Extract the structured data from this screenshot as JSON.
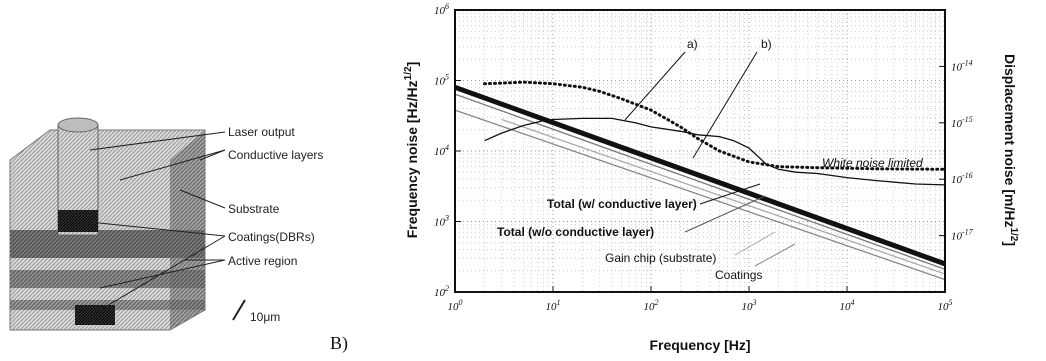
{
  "panel_label": "B)",
  "schematic": {
    "labels": [
      "Laser output",
      "Conductive layers",
      "Substrate",
      "Coatings(DBRs)",
      "Active region"
    ],
    "scale_bar": "10μm"
  },
  "chart_data": {
    "type": "line",
    "xlabel": "Frequency [Hz]",
    "ylabel": "Frequency noise [Hz/Hz^1/2]",
    "y2label": "Displacement noise [m/Hz^1/2]",
    "xscale": "log",
    "yscale": "log",
    "xlim": [
      1,
      100000
    ],
    "ylim": [
      100,
      1000000
    ],
    "y2lim": [
      1e-18,
      1e-13
    ],
    "xticks": [
      1,
      10,
      100,
      1000,
      10000,
      100000
    ],
    "yticks": [
      100,
      1000,
      10000,
      100000,
      1000000
    ],
    "y2ticks": [
      1e-17,
      1e-16,
      1e-15,
      1e-14
    ],
    "grid": true,
    "series": [
      {
        "name": "Total (w/ conductive layer)",
        "x": [
          1,
          100000
        ],
        "y": [
          80000,
          250
        ],
        "color": "#111111",
        "style": "thick"
      },
      {
        "name": "Total (w/o conductive layer)",
        "x": [
          1,
          100000
        ],
        "y": [
          64000,
          210
        ],
        "color": "#777777",
        "style": "solid"
      },
      {
        "name": "Gain chip (substrate)",
        "x": [
          3,
          100000
        ],
        "y": [
          28000,
          180
        ],
        "color": "#aaaaaa",
        "style": "solid"
      },
      {
        "name": "Coatings",
        "x": [
          1,
          100000
        ],
        "y": [
          38000,
          150
        ],
        "color": "#888888",
        "style": "solid"
      },
      {
        "name": "a)",
        "x": [
          2,
          3,
          5,
          8,
          10,
          20,
          40,
          70,
          100,
          200,
          300,
          500,
          700,
          1000,
          1500,
          2000,
          3000,
          5000,
          10000,
          20000,
          50000,
          100000
        ],
        "y": [
          14000,
          18000,
          23000,
          27000,
          28000,
          29000,
          29000,
          25000,
          22000,
          19000,
          17000,
          16000,
          14000,
          11000,
          6500,
          5500,
          5000,
          4800,
          4200,
          3800,
          3400,
          3300
        ],
        "color": "#111111",
        "style": "solid"
      },
      {
        "name": "b)",
        "x": [
          2,
          3,
          5,
          10,
          20,
          30,
          50,
          100,
          200,
          300,
          500,
          1000,
          2000,
          5000,
          10000,
          20000,
          100000
        ],
        "y": [
          90000,
          92000,
          95000,
          90000,
          80000,
          70000,
          55000,
          38000,
          22000,
          15000,
          10000,
          7000,
          6000,
          5800,
          5700,
          5600,
          5500
        ],
        "color": "#111111",
        "style": "dotted"
      }
    ],
    "annotations": [
      "a)",
      "b)",
      "White noise limited",
      "Total (w/ conductive layer)",
      "Total (w/o conductive layer)",
      "Gain chip (substrate)",
      "Coatings"
    ]
  }
}
